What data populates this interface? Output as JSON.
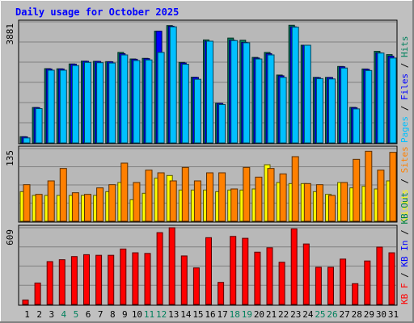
{
  "title": "Daily usage for October 2025",
  "colors": {
    "background": "#c0c0c0",
    "plot_background": "#b8b8b8",
    "gridline": "#808080",
    "title": "#0000ff",
    "hits": "#00805c",
    "files": "#0000ff",
    "pages": "#00c0ff",
    "visits": "#ffff00",
    "sites": "#ff8000",
    "kb_in": "#008040",
    "kb_out": "#0000ff",
    "kb_f": "#ff0000",
    "day_weekday": "#000000",
    "day_weekend": "#00805c"
  },
  "chart_data": [
    {
      "type": "bar",
      "panel": "top",
      "ymax_label": "3881",
      "ylim": [
        0,
        3881
      ],
      "legend_right": [
        {
          "text": "Pages",
          "color_key": "pages"
        },
        {
          "text": " / ",
          "color_key": "day_weekday"
        },
        {
          "text": "Files",
          "color_key": "files"
        },
        {
          "text": " / ",
          "color_key": "day_weekday"
        },
        {
          "text": "Hits",
          "color_key": "hits"
        }
      ],
      "x": [
        1,
        2,
        3,
        4,
        5,
        6,
        7,
        8,
        9,
        10,
        11,
        12,
        13,
        14,
        15,
        16,
        17,
        18,
        19,
        20,
        21,
        22,
        23,
        24,
        25,
        26,
        27,
        28,
        29,
        30,
        31
      ],
      "series": [
        {
          "name": "Hits",
          "color_key": "hits",
          "values": [
            200,
            1135,
            2380,
            2375,
            2530,
            2620,
            2615,
            2605,
            2900,
            2690,
            2710,
            3580,
            3760,
            2580,
            2105,
            3300,
            1270,
            3360,
            3290,
            2740,
            2900,
            2175,
            3770,
            3130,
            2100,
            2100,
            2450,
            1140,
            2370,
            2935,
            2830
          ]
        },
        {
          "name": "Files",
          "color_key": "files",
          "values": [
            195,
            1130,
            2370,
            2370,
            2525,
            2615,
            2610,
            2600,
            2860,
            2680,
            2700,
            3580,
            3740,
            2560,
            2100,
            3260,
            1265,
            3290,
            3220,
            2720,
            2860,
            2150,
            3720,
            3130,
            2090,
            2095,
            2440,
            1130,
            2360,
            2885,
            2780
          ]
        },
        {
          "name": "Pages",
          "color_key": "pages",
          "values": [
            160,
            1100,
            2330,
            2330,
            2480,
            2580,
            2570,
            2560,
            2820,
            2640,
            2660,
            2900,
            3720,
            2520,
            2040,
            3260,
            1230,
            3280,
            3210,
            2690,
            2820,
            2100,
            3710,
            3130,
            2060,
            2050,
            2400,
            1090,
            2320,
            2880,
            2720
          ]
        }
      ]
    },
    {
      "type": "bar",
      "panel": "middle",
      "ymax_label": "135",
      "ylim": [
        0,
        135
      ],
      "legend_right": [
        {
          "text": "Visits",
          "color_key": "visits"
        },
        {
          "text": " / ",
          "color_key": "day_weekday"
        },
        {
          "text": "Sites",
          "color_key": "sites"
        }
      ],
      "x": [
        1,
        2,
        3,
        4,
        5,
        6,
        7,
        8,
        9,
        10,
        11,
        12,
        13,
        14,
        15,
        16,
        17,
        18,
        19,
        20,
        21,
        22,
        23,
        24,
        25,
        26,
        27,
        28,
        29,
        30,
        31
      ],
      "series": [
        {
          "name": "Visits",
          "color_key": "visits",
          "values": [
            55,
            48,
            48,
            48,
            48,
            48,
            48,
            55,
            72,
            40,
            52,
            80,
            85,
            58,
            58,
            58,
            55,
            58,
            58,
            60,
            105,
            72,
            70,
            70,
            55,
            50,
            72,
            62,
            65,
            60,
            75
          ]
        },
        {
          "name": "Sites",
          "color_key": "sites",
          "values": [
            68,
            50,
            75,
            98,
            53,
            50,
            62,
            68,
            108,
            72,
            95,
            90,
            75,
            100,
            75,
            90,
            90,
            60,
            100,
            82,
            98,
            88,
            120,
            70,
            68,
            48,
            72,
            115,
            130,
            95,
            128
          ]
        }
      ]
    },
    {
      "type": "bar",
      "panel": "bottom",
      "ymax_label": "609",
      "ylim": [
        0,
        609
      ],
      "legend_right": [
        {
          "text": "KB F",
          "color_key": "kb_f"
        },
        {
          "text": " / ",
          "color_key": "day_weekday"
        },
        {
          "text": "KB In",
          "color_key": "kb_out"
        },
        {
          "text": " / ",
          "color_key": "day_weekday"
        },
        {
          "text": "KB Out",
          "color_key": "kb_in"
        }
      ],
      "x": [
        1,
        2,
        3,
        4,
        5,
        6,
        7,
        8,
        9,
        10,
        11,
        12,
        13,
        14,
        15,
        16,
        17,
        18,
        19,
        20,
        21,
        22,
        23,
        24,
        25,
        26,
        27,
        28,
        29,
        30,
        31
      ],
      "series": [
        {
          "name": "KB F",
          "color_key": "kb_f",
          "values": [
            35,
            170,
            340,
            355,
            380,
            395,
            390,
            390,
            440,
            410,
            405,
            570,
            610,
            385,
            290,
            530,
            175,
            540,
            525,
            415,
            450,
            335,
            600,
            480,
            295,
            295,
            360,
            165,
            345,
            455,
            410
          ]
        }
      ]
    }
  ],
  "day_labels": [
    {
      "text": "1",
      "weekend": false
    },
    {
      "text": "2",
      "weekend": false
    },
    {
      "text": "3",
      "weekend": false
    },
    {
      "text": "4",
      "weekend": true
    },
    {
      "text": "5",
      "weekend": true
    },
    {
      "text": "6",
      "weekend": false
    },
    {
      "text": "7",
      "weekend": false
    },
    {
      "text": "8",
      "weekend": false
    },
    {
      "text": "9",
      "weekend": false
    },
    {
      "text": "10",
      "weekend": false
    },
    {
      "text": "11",
      "weekend": true
    },
    {
      "text": "12",
      "weekend": true
    },
    {
      "text": "13",
      "weekend": false
    },
    {
      "text": "14",
      "weekend": false
    },
    {
      "text": "15",
      "weekend": false
    },
    {
      "text": "16",
      "weekend": false
    },
    {
      "text": "17",
      "weekend": false
    },
    {
      "text": "18",
      "weekend": true
    },
    {
      "text": "19",
      "weekend": true
    },
    {
      "text": "20",
      "weekend": false
    },
    {
      "text": "21",
      "weekend": false
    },
    {
      "text": "22",
      "weekend": false
    },
    {
      "text": "23",
      "weekend": false
    },
    {
      "text": "24",
      "weekend": false
    },
    {
      "text": "25",
      "weekend": true
    },
    {
      "text": "26",
      "weekend": true
    },
    {
      "text": "27",
      "weekend": false
    },
    {
      "text": "28",
      "weekend": false
    },
    {
      "text": "29",
      "weekend": false
    },
    {
      "text": "30",
      "weekend": false
    },
    {
      "text": "31",
      "weekend": false
    }
  ]
}
